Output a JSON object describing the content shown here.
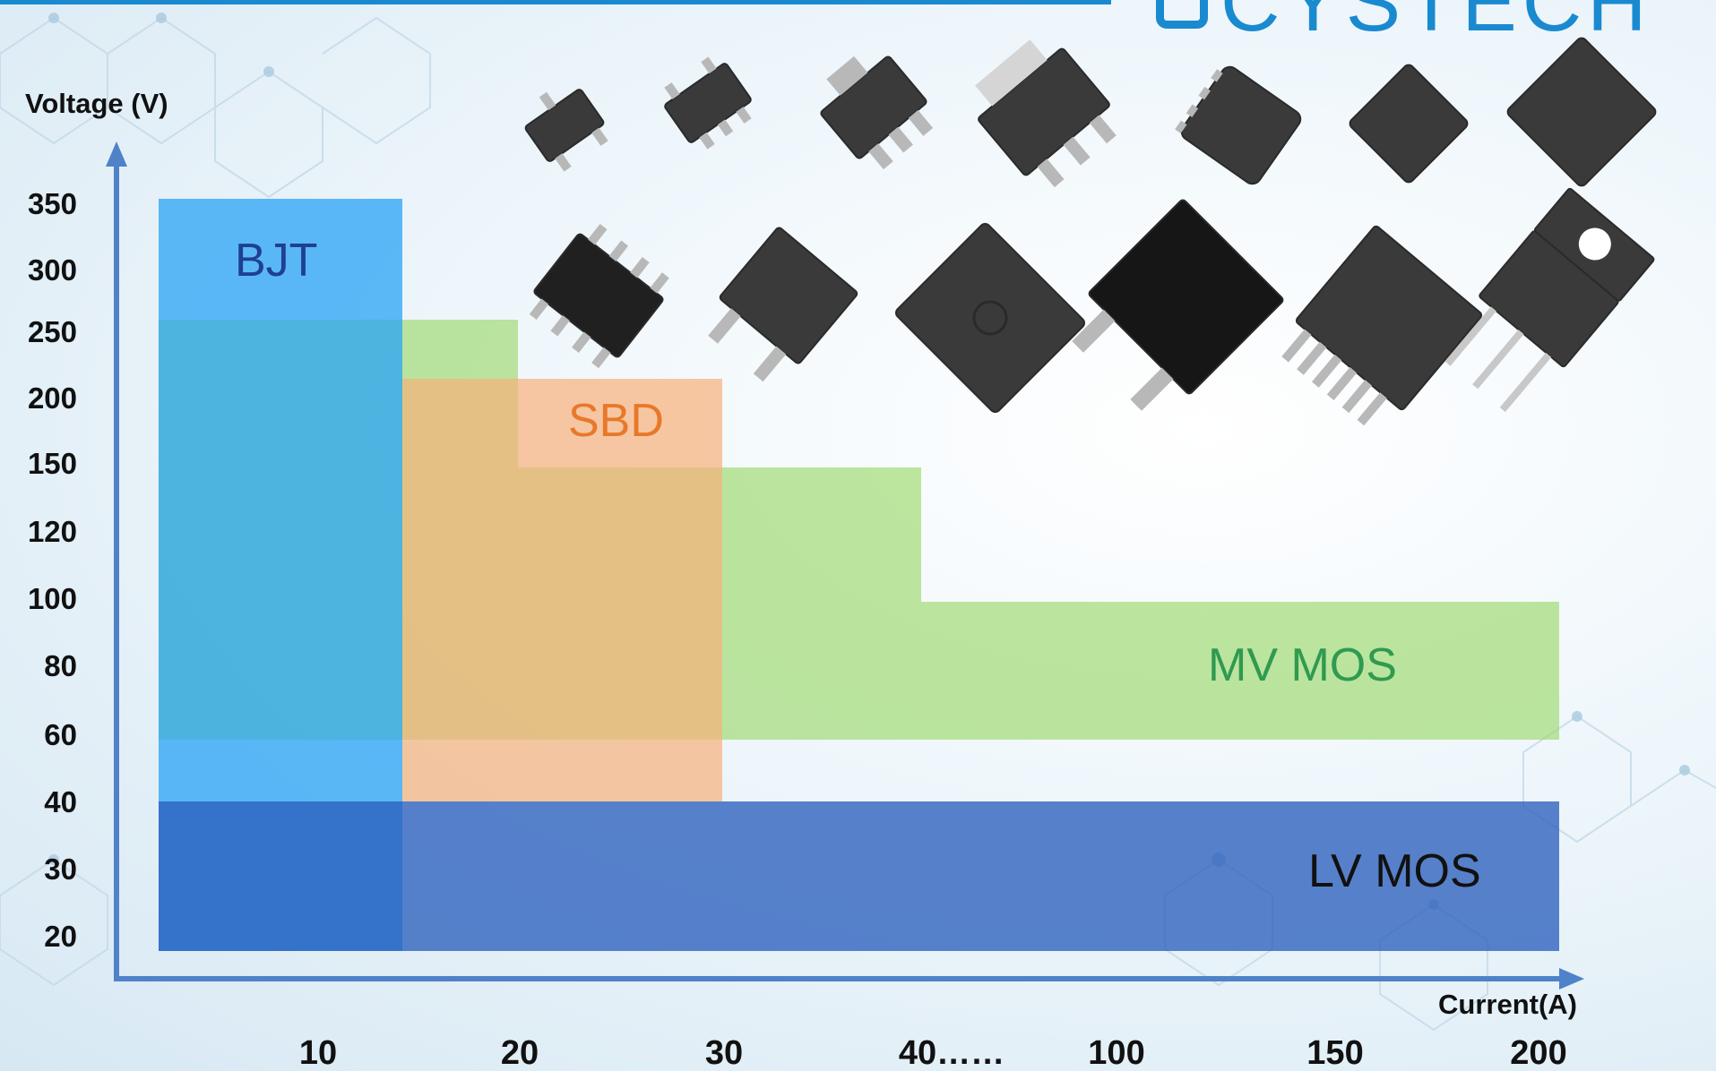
{
  "logo": {
    "text": "CYSTECH"
  },
  "chart_data": {
    "type": "range-chart",
    "title": "",
    "ylabel": "Voltage (V)",
    "xlabel": "Current(A)",
    "y_ticks": [
      "20",
      "30",
      "40",
      "60",
      "80",
      "100",
      "120",
      "150",
      "200",
      "250",
      "300",
      "350"
    ],
    "x_ticks": [
      "10",
      "20",
      "30",
      "40……",
      "100",
      "150",
      "200"
    ],
    "y_scale": "categorical-voltage-levels",
    "x_scale": "categorical-current-levels",
    "grid": false,
    "legend": "none (labels inside bands)",
    "series": [
      {
        "name": "BJT",
        "color": "#2aa3f5",
        "text_color": "#1f3f93",
        "segments": [
          {
            "x_range": [
              "0",
              "10"
            ],
            "y_range": [
              "20",
              "350"
            ]
          }
        ]
      },
      {
        "name": "SBD",
        "color": "#f7b07a",
        "text_color": "#e8782a",
        "segments": [
          {
            "x_range": [
              "10",
              "30"
            ],
            "y_range": [
              "40",
              "200"
            ]
          }
        ]
      },
      {
        "name": "MV MOS",
        "color": "#9bd96b",
        "text_color": "#2f9a50",
        "segments": [
          {
            "x_range": [
              "0",
              "20"
            ],
            "y_range": [
              "150",
              "250"
            ]
          },
          {
            "x_range": [
              "0",
              "40"
            ],
            "y_range": [
              "100",
              "150"
            ]
          },
          {
            "x_range": [
              "0",
              "200"
            ],
            "y_range": [
              "60",
              "100"
            ]
          }
        ]
      },
      {
        "name": "LV MOS",
        "color": "#2b5fbd",
        "text_color": "#111111",
        "segments": [
          {
            "x_range": [
              "0",
              "200"
            ],
            "y_range": [
              "20",
              "40"
            ]
          }
        ]
      }
    ]
  },
  "colors": {
    "accent": "#1a8ad0",
    "axis": "#4f82c8",
    "package": "#3a3a3a"
  },
  "package_icons": [
    "sot-23-icon",
    "sot-23-6-icon",
    "sot-89-icon",
    "sot-223-icon",
    "dfn-5x6-icon",
    "dfn-3x3-icon",
    "dfn-8x8-icon",
    "sop-8-icon",
    "to-252-icon",
    "toll-icon",
    "to-263-icon",
    "to-263-7-icon",
    "to-220-icon"
  ]
}
